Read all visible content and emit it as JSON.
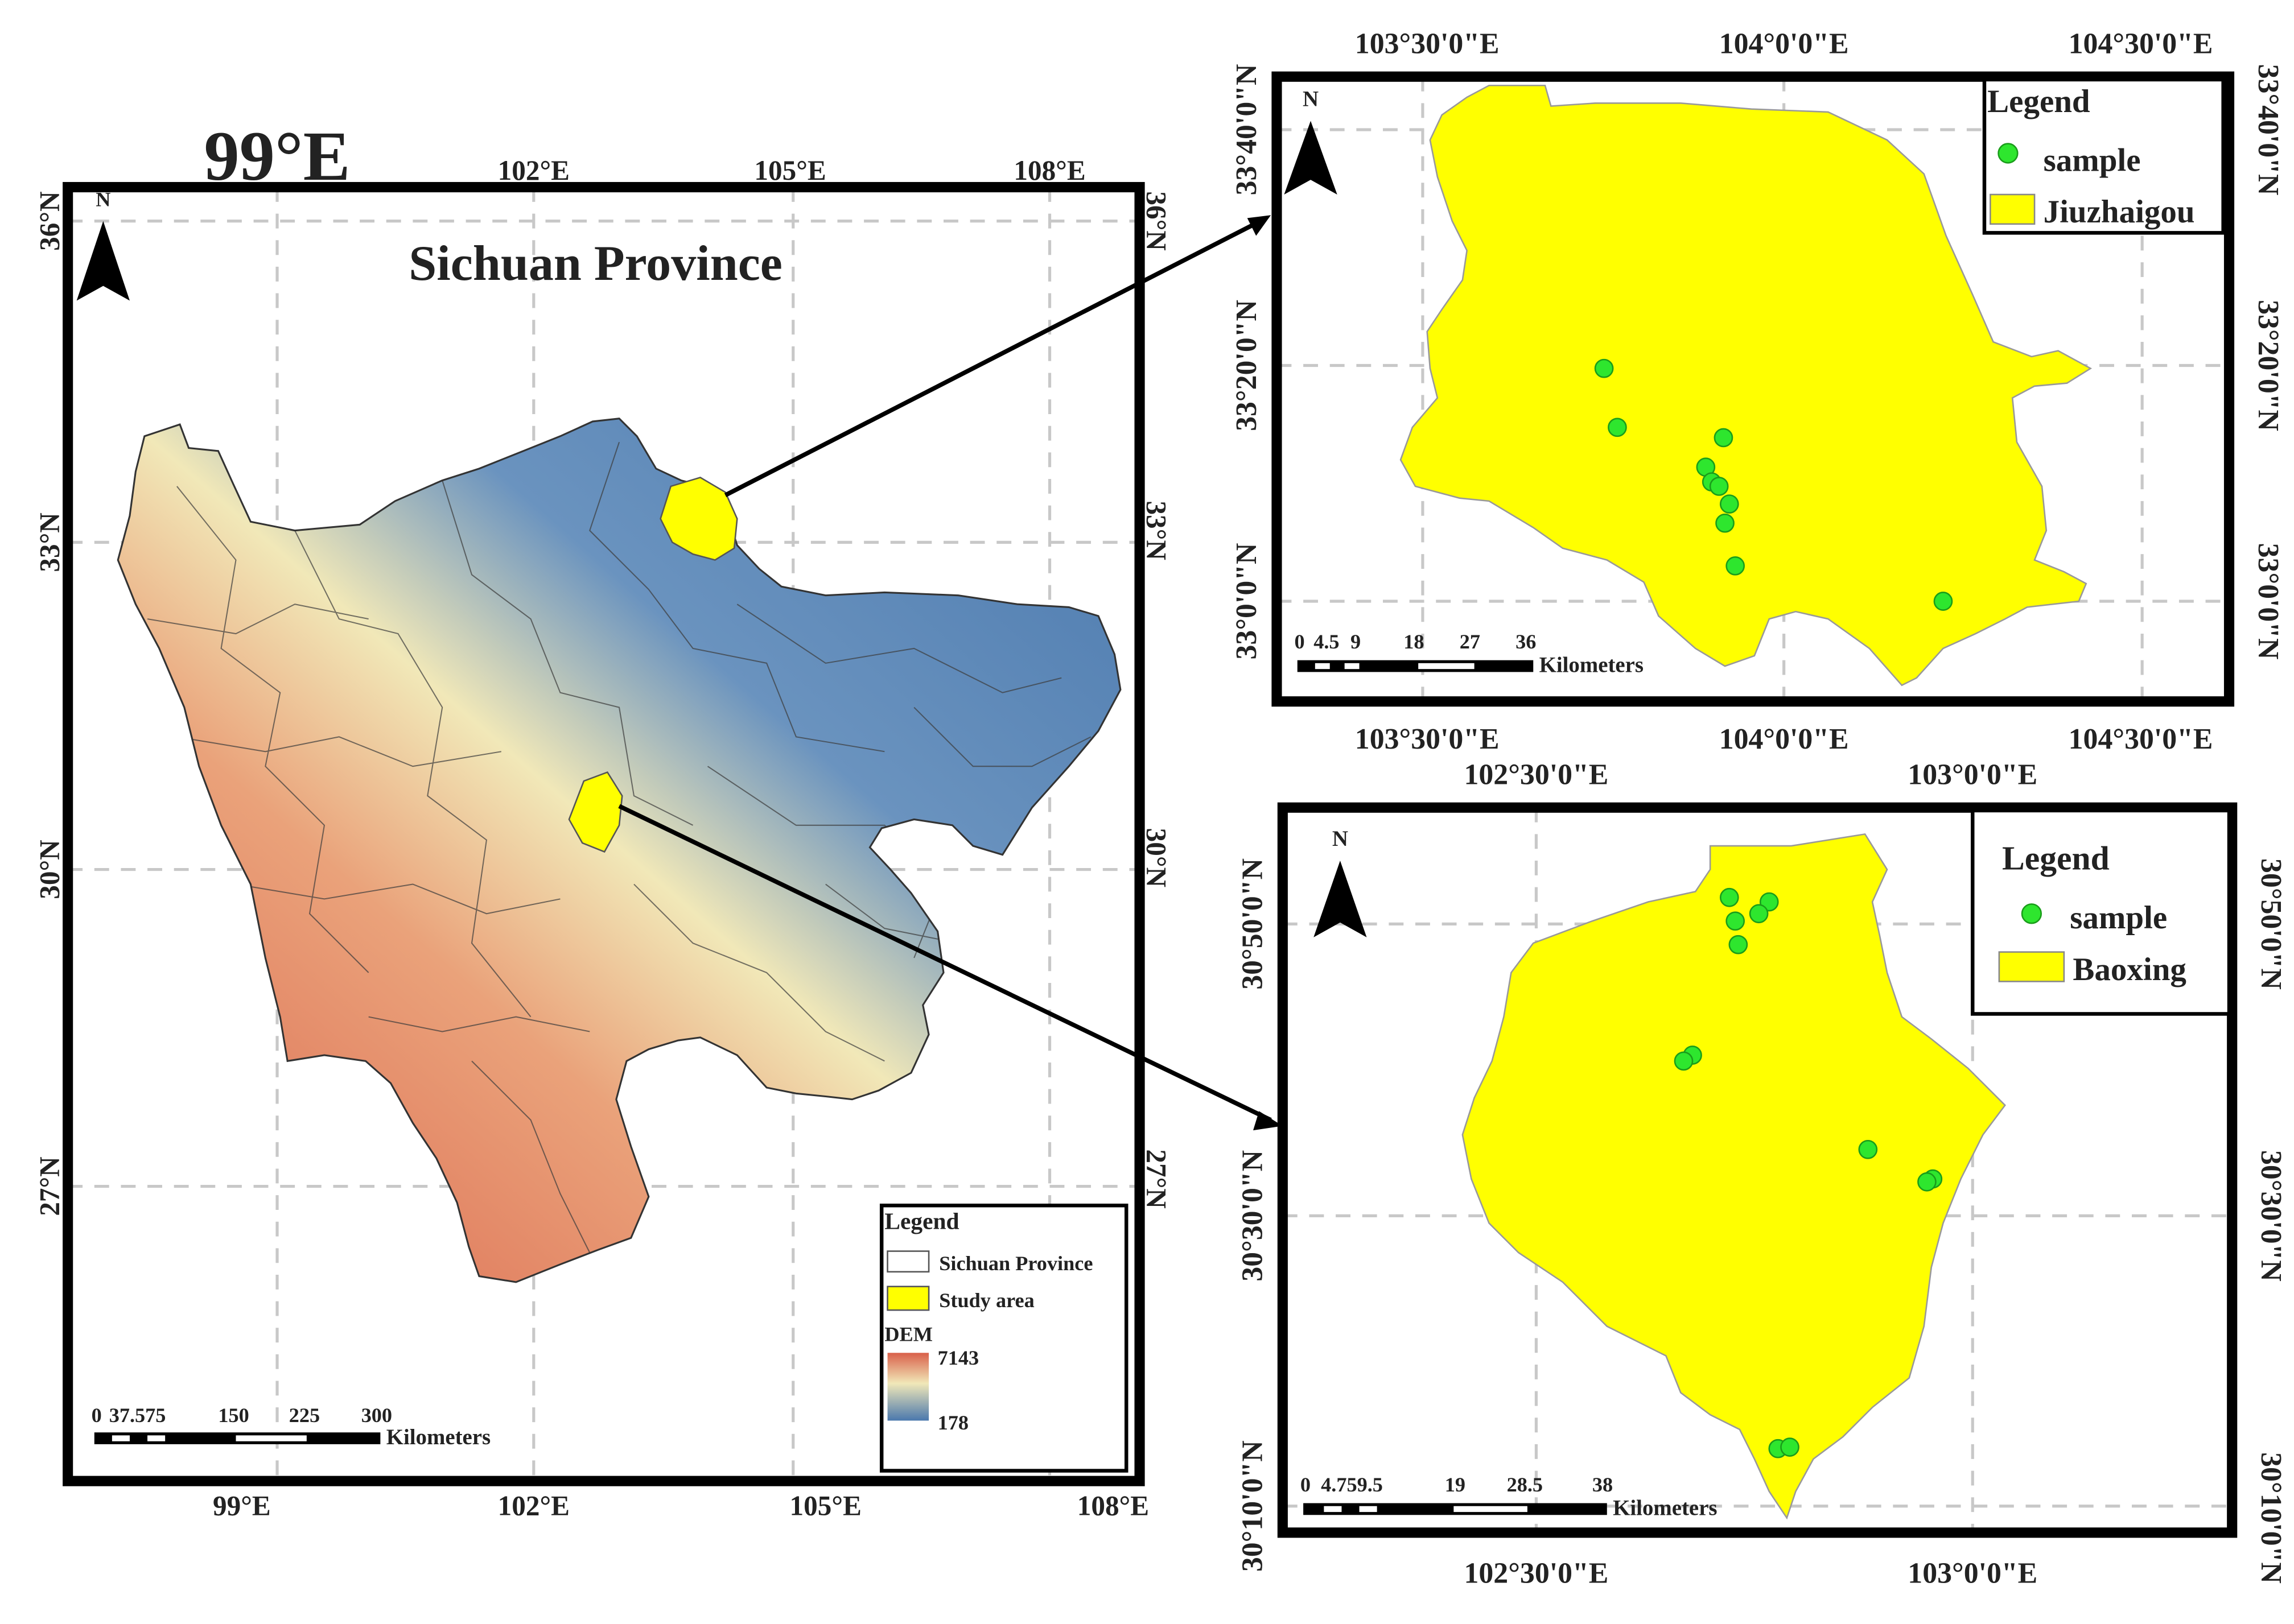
{
  "main_map": {
    "title": "Sichuan Province",
    "north": "N",
    "lon_labels": [
      "99°E",
      "102°E",
      "105°E",
      "108°E"
    ],
    "lat_labels": [
      "36°N",
      "33°N",
      "30°N",
      "27°N"
    ],
    "scale_ticks": [
      "0",
      "37.575",
      "150",
      "225",
      "300"
    ],
    "scale_unit": "Kilometers",
    "legend": {
      "title": "Legend",
      "item_province": "Sichuan Province",
      "item_study": "Study area",
      "dem_label": "DEM",
      "dem_max": "7143",
      "dem_min": "178"
    },
    "colors": {
      "high": "#d9604a",
      "mid": "#f1e8b8",
      "low": "#4a78ad",
      "study": "#ffff00"
    }
  },
  "jiuzhaigou_map": {
    "north": "N",
    "lon_labels": [
      "103°30'0\"E",
      "104°0'0\"E",
      "104°30'0\"E"
    ],
    "lat_labels": [
      "33°40'0\"N",
      "33°20'0\"N",
      "33°0'0\"N"
    ],
    "scale_ticks": [
      "0",
      "4.5",
      "9",
      "18",
      "27",
      "36"
    ],
    "scale_unit": "Kilometers",
    "legend": {
      "title": "Legend",
      "item_sample": "sample",
      "item_area": "Jiuzhaigou"
    },
    "samples": [
      [
        1088,
        250
      ],
      [
        1097,
        290
      ],
      [
        1169,
        297
      ],
      [
        1157,
        317
      ],
      [
        1161,
        327
      ],
      [
        1166,
        330
      ],
      [
        1173,
        342
      ],
      [
        1170,
        355
      ],
      [
        1177,
        384
      ],
      [
        1318,
        408
      ]
    ]
  },
  "baoxing_map": {
    "north": "N",
    "lon_labels": [
      "102°30'0\"E",
      "103°0'0\"E"
    ],
    "lat_labels": [
      "30°50'0\"N",
      "30°30'0\"N",
      "30°10'0\"N"
    ],
    "scale_ticks": [
      "0",
      "4.759.5",
      "19",
      "28.5",
      "38"
    ],
    "scale_unit": "Kilometers",
    "legend": {
      "title": "Legend",
      "item_sample": "sample",
      "item_area": "Baoxing"
    },
    "samples": [
      [
        1173,
        609
      ],
      [
        1200,
        612
      ],
      [
        1193,
        620
      ],
      [
        1177,
        625
      ],
      [
        1179,
        641
      ],
      [
        1148,
        716
      ],
      [
        1142,
        720
      ],
      [
        1267,
        780
      ],
      [
        1311,
        800
      ],
      [
        1307,
        802
      ],
      [
        1206,
        983
      ],
      [
        1214,
        982
      ]
    ]
  }
}
